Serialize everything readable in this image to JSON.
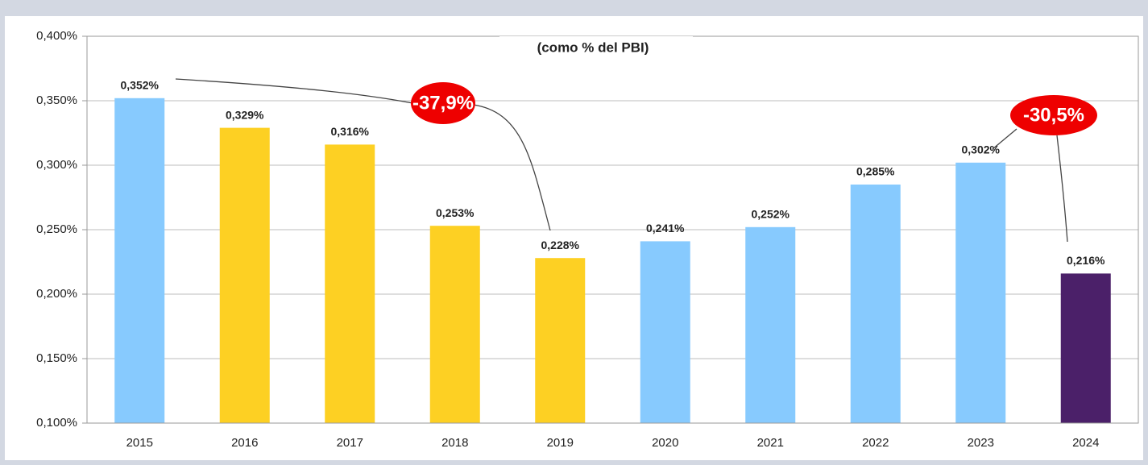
{
  "chart_data": {
    "type": "bar",
    "title": "(como % del PBI)",
    "categories": [
      "2015",
      "2016",
      "2017",
      "2018",
      "2019",
      "2020",
      "2021",
      "2022",
      "2023",
      "2024"
    ],
    "values": [
      0.352,
      0.329,
      0.316,
      0.253,
      0.228,
      0.241,
      0.252,
      0.285,
      0.302,
      0.216
    ],
    "value_labels": [
      "0,352%",
      "0,329%",
      "0,316%",
      "0,253%",
      "0,228%",
      "0,241%",
      "0,252%",
      "0,285%",
      "0,302%",
      "0,216%"
    ],
    "colors": [
      "#87cafe",
      "#fdd023",
      "#fdd023",
      "#fdd023",
      "#fdd023",
      "#87cafe",
      "#87cafe",
      "#87cafe",
      "#87cafe",
      "#4b2069"
    ],
    "ylim": [
      0.1,
      0.4
    ],
    "yticks": [
      {
        "value": 0.1,
        "label": "0,100%"
      },
      {
        "value": 0.15,
        "label": "0,150%"
      },
      {
        "value": 0.2,
        "label": "0,200%"
      },
      {
        "value": 0.25,
        "label": "0,250%"
      },
      {
        "value": 0.3,
        "label": "0,300%"
      },
      {
        "value": 0.35,
        "label": "0,350%"
      },
      {
        "value": 0.4,
        "label": "0,400%"
      }
    ],
    "grid": true,
    "annotations": [
      "-37,9%",
      "-30,5%"
    ]
  }
}
